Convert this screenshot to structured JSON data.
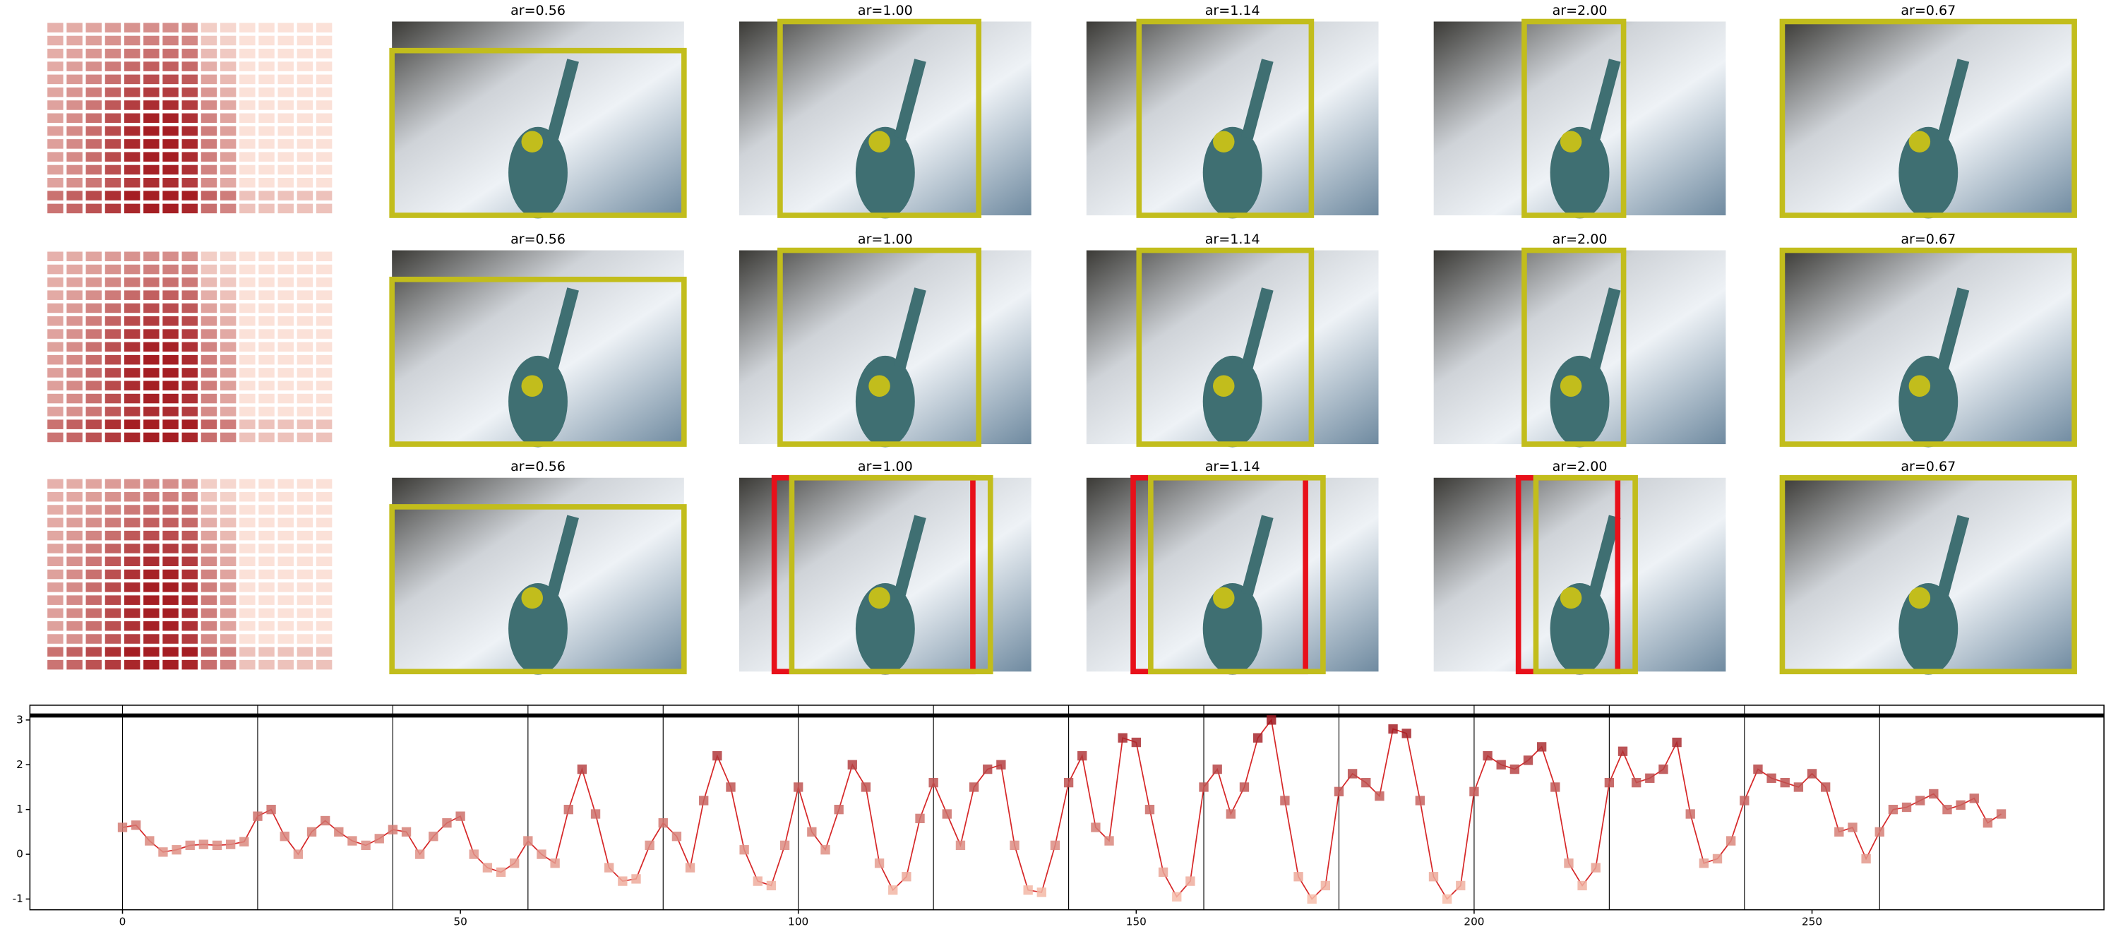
{
  "panels": {
    "rows": [
      {
        "titles": [
          "ar=0.56",
          "ar=1.00",
          "ar=1.14",
          "ar=2.00",
          "ar=0.67"
        ]
      },
      {
        "titles": [
          "ar=0.56",
          "ar=1.00",
          "ar=1.14",
          "ar=2.00",
          "ar=0.67"
        ]
      },
      {
        "titles": [
          "ar=0.56",
          "ar=1.00",
          "ar=1.14",
          "ar=2.00",
          "ar=0.67"
        ]
      }
    ]
  },
  "chart_data": {
    "type": "line",
    "x": [
      0,
      2,
      4,
      6,
      8,
      10,
      12,
      14,
      16,
      18,
      20,
      22,
      24,
      26,
      28,
      30,
      32,
      34,
      36,
      38,
      40,
      42,
      44,
      46,
      48,
      50,
      52,
      54,
      56,
      58,
      60,
      62,
      64,
      66,
      68,
      70,
      72,
      74,
      76,
      78,
      80,
      82,
      84,
      86,
      88,
      90,
      92,
      94,
      96,
      98,
      100,
      102,
      104,
      106,
      108,
      110,
      112,
      114,
      116,
      118,
      120,
      122,
      124,
      126,
      128,
      130,
      132,
      134,
      136,
      138,
      140,
      142,
      144,
      146,
      148,
      150,
      152,
      154,
      156,
      158,
      160,
      162,
      164,
      166,
      168,
      170,
      172,
      174,
      176,
      178,
      180,
      182,
      184,
      186,
      188,
      190,
      192,
      194,
      196,
      198,
      200,
      202,
      204,
      206,
      208,
      210,
      212,
      214,
      216,
      218,
      220,
      222,
      224,
      226,
      228,
      230,
      232,
      234,
      236,
      238,
      240,
      242,
      244,
      246,
      248,
      250,
      252,
      254,
      256,
      258,
      260,
      262,
      264,
      266,
      268,
      270,
      272,
      274,
      276,
      278
    ],
    "series": [
      {
        "color": "#d62728",
        "values": [
          0.6,
          0.65,
          0.3,
          0.05,
          0.1,
          0.2,
          0.22,
          0.2,
          0.22,
          0.28,
          0.85,
          1.0,
          0.4,
          0.0,
          0.5,
          0.75,
          0.5,
          0.3,
          0.2,
          0.35,
          0.55,
          0.5,
          0.0,
          0.4,
          0.7,
          0.85,
          0.0,
          -0.3,
          -0.4,
          -0.2,
          0.3,
          0.0,
          -0.2,
          1.0,
          1.9,
          0.9,
          -0.3,
          -0.6,
          -0.55,
          0.2,
          0.7,
          0.4,
          -0.3,
          1.2,
          2.2,
          1.5,
          0.1,
          -0.6,
          -0.7,
          0.2,
          1.5,
          0.5,
          0.1,
          1.0,
          2.0,
          1.5,
          -0.2,
          -0.8,
          -0.5,
          0.8,
          1.6,
          0.9,
          0.2,
          1.5,
          1.9,
          2.0,
          0.2,
          -0.8,
          -0.85,
          0.2,
          1.6,
          2.2,
          0.6,
          0.3,
          2.6,
          2.5,
          1.0,
          -0.4,
          -0.95,
          -0.6,
          1.5,
          1.9,
          0.9,
          1.5,
          2.6,
          3.0,
          1.2,
          -0.5,
          -1.0,
          -0.7,
          1.4,
          1.8,
          1.6,
          1.3,
          2.8,
          2.7,
          1.2,
          -0.5,
          -1.0,
          -0.7,
          1.4,
          2.2,
          2.0,
          1.9,
          2.1,
          2.4,
          1.5,
          -0.2,
          -0.7,
          -0.3,
          1.6,
          2.3,
          1.6,
          1.7,
          1.9,
          2.5,
          0.9,
          -0.2,
          -0.1,
          0.3,
          1.2,
          1.9,
          1.7,
          1.6,
          1.5,
          1.8,
          1.5,
          0.5,
          0.6,
          -0.1,
          0.5,
          1.0,
          1.05,
          1.2,
          1.35,
          1.0,
          1.1,
          1.25,
          0.7,
          0.9
        ]
      }
    ],
    "xlim": [
      -13.7,
      293.2
    ],
    "ylim": [
      -1.24,
      3.33
    ],
    "xticks": [
      0,
      50,
      100,
      150,
      200,
      250
    ],
    "yticks": [
      -1,
      0,
      1,
      2,
      3
    ],
    "vlines": [
      0,
      20,
      40,
      60,
      80,
      100,
      120,
      140,
      160,
      180,
      200,
      220,
      240,
      260
    ],
    "hline": 3.1
  }
}
